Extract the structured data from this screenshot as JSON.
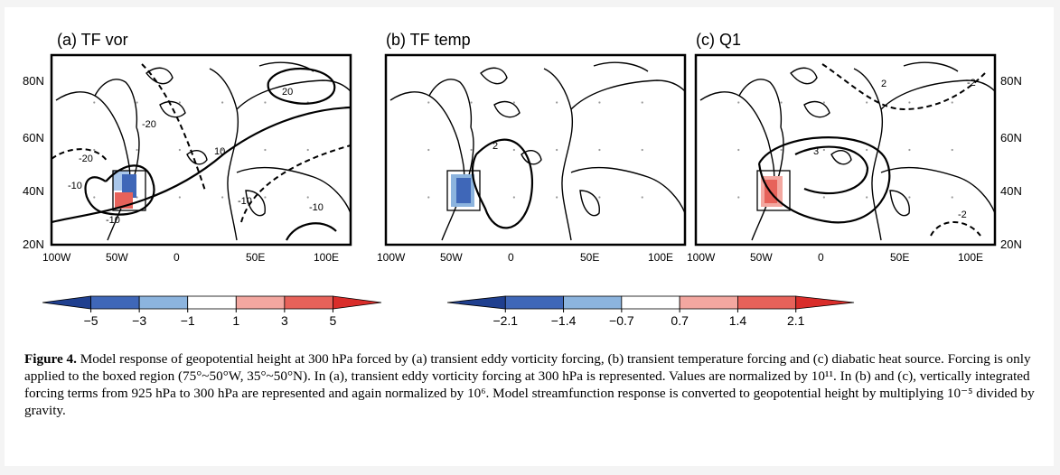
{
  "panels": [
    {
      "title": "(a) TF vor",
      "contours": [
        "20",
        "-20",
        "-20",
        "10",
        "-10",
        "-10",
        "-10",
        "-10"
      ]
    },
    {
      "title": "(b) TF temp",
      "contours": [
        "2"
      ]
    },
    {
      "title": "(c) Q1",
      "contours": [
        "2",
        "-2",
        "3",
        "-2"
      ]
    }
  ],
  "axes": {
    "lat_labels": [
      "80N",
      "60N",
      "40N",
      "20N"
    ],
    "lon_labels": [
      "100W",
      "50W",
      "0",
      "50E",
      "100E"
    ]
  },
  "colorbars": [
    {
      "labels": [
        "−5",
        "−3",
        "−1",
        "1",
        "3",
        "5"
      ],
      "colors": [
        "#1f3f8f",
        "#3f67b8",
        "#8cb4de",
        "#ffffff",
        "#f3a7a0",
        "#e7625a",
        "#d92d2a"
      ]
    },
    {
      "labels": [
        "−2.1",
        "−1.4",
        "−0.7",
        "0.7",
        "1.4",
        "2.1"
      ],
      "colors": [
        "#1f3f8f",
        "#3f67b8",
        "#8cb4de",
        "#ffffff",
        "#f3a7a0",
        "#e7625a",
        "#d92d2a"
      ]
    }
  ],
  "caption": {
    "lead": "Figure 4.",
    "text": "Model response of geopotential height at 300 hPa forced by (a) transient eddy vorticity forcing, (b) transient temperature forcing and (c) diabatic heat source. Forcing is only applied to the boxed region (75°~50°W, 35°~50°N). In (a), transient eddy vorticity forcing at 300 hPa is represented. Values are normalized by 10¹¹. In (b) and (c), vertically integrated forcing terms from 925 hPa to 300 hPa are represented and again normalized by 10⁶. Model streamfunction response is converted to geopotential height by multiplying 10⁻⁵ divided by gravity."
  }
}
